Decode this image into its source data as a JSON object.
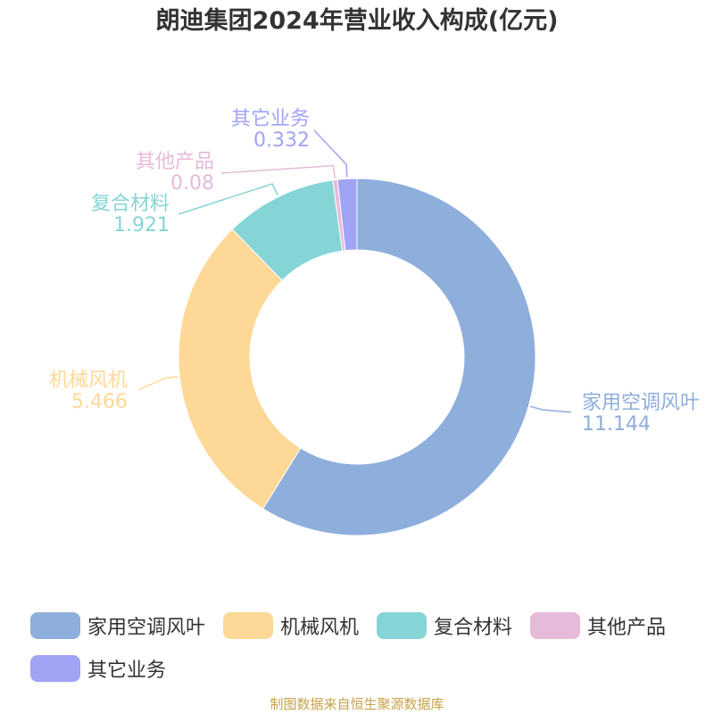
{
  "chart_data": {
    "type": "pie",
    "style": "donut",
    "title": "朗迪集团2024年营业收入构成(亿元)",
    "categories": [
      "家用空调风叶",
      "机械风机",
      "复合材料",
      "其他产品",
      "其它业务"
    ],
    "values": [
      11.144,
      5.466,
      1.921,
      0.08,
      0.332
    ],
    "value_labels": [
      "11.144",
      "5.466",
      "1.921",
      "0.08",
      "0.332"
    ],
    "colors": [
      "#8eaedb",
      "#fed897",
      "#86d5d6",
      "#e6bad9",
      "#a1a3f5"
    ],
    "legend_placement": "bottom"
  },
  "source": "制图数据来自恒生聚源数据库"
}
